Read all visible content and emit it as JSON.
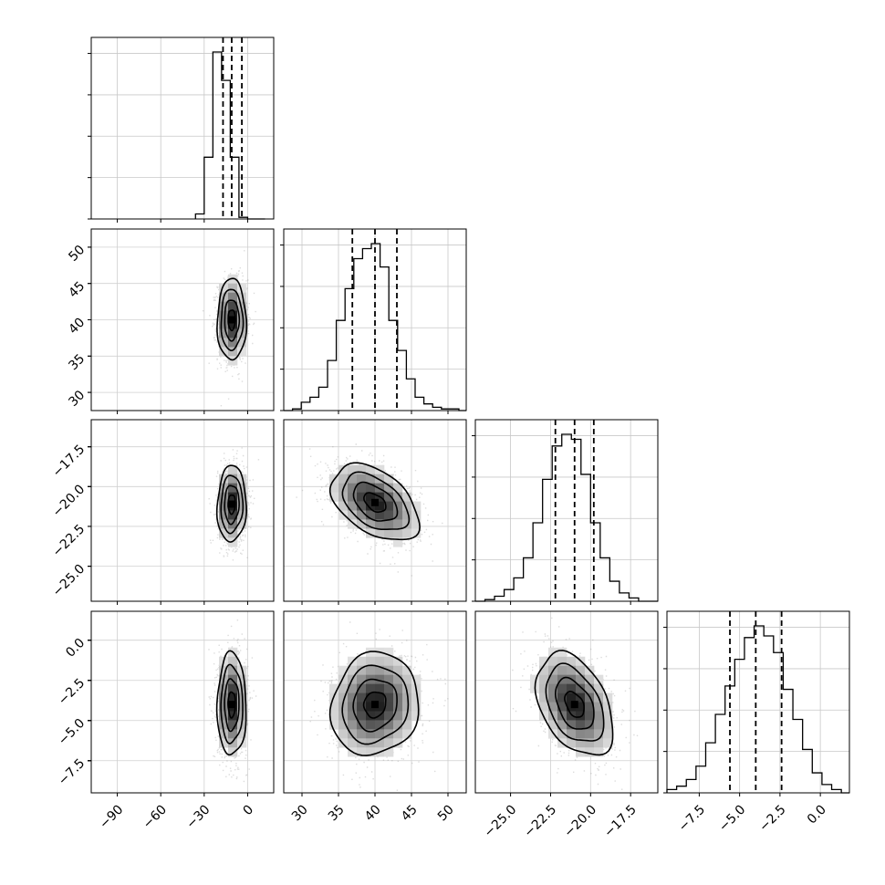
{
  "chart_data": {
    "type": "corner",
    "grid": true,
    "variables": [
      {
        "range": [
          -108,
          18
        ],
        "ticks": [
          -90,
          -60,
          -30,
          0
        ],
        "tick_labels": [
          "−90",
          "−60",
          "−30",
          "0"
        ],
        "quantiles": [
          -17,
          -11,
          -4
        ],
        "hist_bin_edges": [
          -36,
          -30,
          -24,
          -18,
          -12,
          -6,
          0,
          6,
          12
        ],
        "hist_counts": [
          0.03,
          0.37,
          1.0,
          0.83,
          0.37,
          0.01,
          0.0,
          0.0
        ]
      },
      {
        "range": [
          27.5,
          52.5
        ],
        "ticks": [
          30,
          35,
          40,
          45,
          50
        ],
        "tick_labels": [
          "30",
          "35",
          "40",
          "45",
          "50"
        ],
        "quantiles": [
          36.9,
          40.0,
          43.0
        ],
        "hist_bin_edges": [
          27.5,
          28.7,
          29.9,
          31.1,
          32.3,
          33.5,
          34.7,
          35.9,
          37.1,
          38.3,
          39.5,
          40.7,
          41.9,
          43.1,
          44.3,
          45.5,
          46.7,
          47.9,
          49.1,
          50.3,
          51.5,
          52.5
        ],
        "hist_counts": [
          0.0,
          0.01,
          0.05,
          0.08,
          0.14,
          0.3,
          0.54,
          0.73,
          0.91,
          0.97,
          1.0,
          0.86,
          0.54,
          0.36,
          0.19,
          0.08,
          0.04,
          0.02,
          0.01,
          0.01,
          0.0
        ]
      },
      {
        "range": [
          -27.2,
          -15.8
        ],
        "ticks": [
          -25.0,
          -22.5,
          -20.0,
          -17.5
        ],
        "tick_labels": [
          "−25.0",
          "−22.5",
          "−20.0",
          "−17.5"
        ],
        "quantiles": [
          -22.2,
          -21.0,
          -19.8
        ],
        "hist_bin_edges": [
          -27.2,
          -26.6,
          -26.0,
          -25.4,
          -24.8,
          -24.2,
          -23.6,
          -23.0,
          -22.4,
          -21.8,
          -21.2,
          -20.6,
          -20.0,
          -19.4,
          -18.8,
          -18.2,
          -17.6,
          -17.0,
          -16.4,
          -15.8
        ],
        "hist_counts": [
          0.0,
          0.01,
          0.03,
          0.07,
          0.14,
          0.26,
          0.47,
          0.73,
          0.93,
          1.0,
          0.97,
          0.76,
          0.47,
          0.26,
          0.12,
          0.05,
          0.02,
          0.0,
          0.0
        ]
      },
      {
        "range": [
          -9.5,
          1.8
        ],
        "ticks": [
          -7.5,
          -5.0,
          -2.5,
          0.0
        ],
        "tick_labels": [
          "−7.5",
          "−5.0",
          "−2.5",
          "0.0"
        ],
        "quantiles": [
          -5.6,
          -4.0,
          -2.4
        ],
        "hist_bin_edges": [
          -9.5,
          -8.9,
          -8.3,
          -7.7,
          -7.1,
          -6.5,
          -5.9,
          -5.3,
          -4.7,
          -4.1,
          -3.5,
          -2.9,
          -2.3,
          -1.7,
          -1.1,
          -0.5,
          0.1,
          0.7,
          1.3,
          1.8
        ],
        "hist_counts": [
          0.02,
          0.04,
          0.08,
          0.16,
          0.3,
          0.47,
          0.64,
          0.8,
          0.93,
          1.0,
          0.94,
          0.84,
          0.62,
          0.44,
          0.26,
          0.12,
          0.05,
          0.02,
          0.0
        ]
      }
    ],
    "pairs": [
      {
        "row": 1,
        "col": 0,
        "center": [
          -11,
          40.0
        ],
        "sigma": [
          5.0,
          2.8
        ],
        "corr": 0.0
      },
      {
        "row": 2,
        "col": 0,
        "center": [
          -11,
          -21.1
        ],
        "sigma": [
          5.0,
          1.2
        ],
        "corr": 0.05
      },
      {
        "row": 2,
        "col": 1,
        "center": [
          40.0,
          -21.0
        ],
        "sigma": [
          3.0,
          1.2
        ],
        "corr": -0.45
      },
      {
        "row": 3,
        "col": 0,
        "center": [
          -11,
          -4.0
        ],
        "sigma": [
          5.0,
          1.6
        ],
        "corr": 0.0
      },
      {
        "row": 3,
        "col": 1,
        "center": [
          40.0,
          -4.0
        ],
        "sigma": [
          3.0,
          1.6
        ],
        "corr": 0.1
      },
      {
        "row": 3,
        "col": 2,
        "center": [
          -21.0,
          -4.0
        ],
        "sigma": [
          1.2,
          1.6
        ],
        "corr": -0.4
      }
    ],
    "contour_levels_sigma": [
      0.5,
      1.0,
      1.5,
      2.0
    ]
  }
}
